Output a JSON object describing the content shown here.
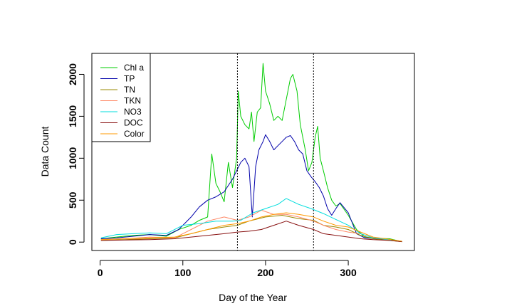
{
  "chart_data": {
    "type": "line",
    "xlabel": "Day of the Year",
    "ylabel": "Data Count",
    "xlim": [
      -10,
      380
    ],
    "ylim": [
      -100,
      2250
    ],
    "x_ticks": [
      0,
      100,
      200,
      300
    ],
    "y_ticks": [
      0,
      500,
      1000,
      1500,
      2000
    ],
    "vlines": [
      166,
      258
    ],
    "legend_position": "top-left",
    "series": [
      {
        "name": "Chl a",
        "color": "#00cc00",
        "points": [
          [
            1,
            40
          ],
          [
            20,
            60
          ],
          [
            40,
            80
          ],
          [
            60,
            90
          ],
          [
            80,
            70
          ],
          [
            95,
            150
          ],
          [
            110,
            200
          ],
          [
            120,
            260
          ],
          [
            130,
            300
          ],
          [
            135,
            1050
          ],
          [
            140,
            700
          ],
          [
            145,
            600
          ],
          [
            150,
            480
          ],
          [
            155,
            950
          ],
          [
            160,
            650
          ],
          [
            165,
            1000
          ],
          [
            167,
            1800
          ],
          [
            170,
            1500
          ],
          [
            175,
            1400
          ],
          [
            180,
            1350
          ],
          [
            183,
            1550
          ],
          [
            186,
            1200
          ],
          [
            190,
            1550
          ],
          [
            194,
            1600
          ],
          [
            197,
            2130
          ],
          [
            200,
            1800
          ],
          [
            205,
            1650
          ],
          [
            210,
            1450
          ],
          [
            215,
            1500
          ],
          [
            220,
            1450
          ],
          [
            225,
            1700
          ],
          [
            230,
            1950
          ],
          [
            233,
            2000
          ],
          [
            238,
            1800
          ],
          [
            242,
            1400
          ],
          [
            248,
            1100
          ],
          [
            252,
            850
          ],
          [
            256,
            950
          ],
          [
            260,
            1250
          ],
          [
            263,
            1380
          ],
          [
            266,
            1000
          ],
          [
            270,
            850
          ],
          [
            275,
            650
          ],
          [
            280,
            500
          ],
          [
            285,
            430
          ],
          [
            290,
            460
          ],
          [
            300,
            320
          ],
          [
            310,
            150
          ],
          [
            320,
            60
          ],
          [
            335,
            45
          ],
          [
            350,
            40
          ],
          [
            365,
            5
          ]
        ]
      },
      {
        "name": "TP",
        "color": "#0000aa",
        "points": [
          [
            1,
            40
          ],
          [
            20,
            50
          ],
          [
            40,
            70
          ],
          [
            60,
            90
          ],
          [
            80,
            80
          ],
          [
            95,
            150
          ],
          [
            110,
            300
          ],
          [
            120,
            420
          ],
          [
            130,
            500
          ],
          [
            140,
            540
          ],
          [
            150,
            600
          ],
          [
            160,
            750
          ],
          [
            165,
            850
          ],
          [
            170,
            950
          ],
          [
            175,
            1000
          ],
          [
            180,
            900
          ],
          [
            184,
            300
          ],
          [
            188,
            900
          ],
          [
            192,
            1100
          ],
          [
            197,
            1200
          ],
          [
            200,
            1280
          ],
          [
            205,
            1200
          ],
          [
            210,
            1100
          ],
          [
            215,
            1150
          ],
          [
            220,
            1200
          ],
          [
            225,
            1250
          ],
          [
            230,
            1270
          ],
          [
            235,
            1200
          ],
          [
            240,
            1100
          ],
          [
            245,
            1050
          ],
          [
            250,
            850
          ],
          [
            255,
            780
          ],
          [
            260,
            720
          ],
          [
            265,
            650
          ],
          [
            270,
            550
          ],
          [
            275,
            400
          ],
          [
            280,
            320
          ],
          [
            285,
            400
          ],
          [
            290,
            470
          ],
          [
            300,
            350
          ],
          [
            310,
            100
          ],
          [
            320,
            50
          ],
          [
            335,
            40
          ],
          [
            350,
            30
          ],
          [
            365,
            5
          ]
        ]
      },
      {
        "name": "TN",
        "color": "#998800",
        "points": [
          [
            1,
            20
          ],
          [
            30,
            30
          ],
          [
            60,
            40
          ],
          [
            90,
            50
          ],
          [
            110,
            100
          ],
          [
            130,
            150
          ],
          [
            150,
            180
          ],
          [
            166,
            200
          ],
          [
            180,
            250
          ],
          [
            200,
            300
          ],
          [
            220,
            320
          ],
          [
            240,
            280
          ],
          [
            258,
            260
          ],
          [
            270,
            200
          ],
          [
            285,
            180
          ],
          [
            300,
            150
          ],
          [
            315,
            80
          ],
          [
            330,
            40
          ],
          [
            350,
            20
          ],
          [
            365,
            5
          ]
        ]
      },
      {
        "name": "TKN",
        "color": "#ff8866",
        "points": [
          [
            1,
            30
          ],
          [
            30,
            40
          ],
          [
            60,
            60
          ],
          [
            90,
            50
          ],
          [
            110,
            150
          ],
          [
            130,
            250
          ],
          [
            150,
            300
          ],
          [
            166,
            260
          ],
          [
            180,
            300
          ],
          [
            195,
            380
          ],
          [
            210,
            330
          ],
          [
            225,
            330
          ],
          [
            240,
            300
          ],
          [
            258,
            250
          ],
          [
            270,
            200
          ],
          [
            285,
            150
          ],
          [
            300,
            120
          ],
          [
            315,
            100
          ],
          [
            330,
            50
          ],
          [
            350,
            30
          ],
          [
            365,
            5
          ]
        ]
      },
      {
        "name": "NO3",
        "color": "#00dddd",
        "points": [
          [
            1,
            50
          ],
          [
            20,
            90
          ],
          [
            40,
            100
          ],
          [
            60,
            110
          ],
          [
            80,
            100
          ],
          [
            100,
            200
          ],
          [
            120,
            220
          ],
          [
            140,
            250
          ],
          [
            160,
            250
          ],
          [
            170,
            260
          ],
          [
            185,
            350
          ],
          [
            200,
            400
          ],
          [
            215,
            450
          ],
          [
            225,
            520
          ],
          [
            240,
            450
          ],
          [
            255,
            400
          ],
          [
            270,
            340
          ],
          [
            285,
            270
          ],
          [
            300,
            200
          ],
          [
            315,
            100
          ],
          [
            330,
            50
          ],
          [
            350,
            30
          ],
          [
            365,
            10
          ]
        ]
      },
      {
        "name": "DOC",
        "color": "#881111",
        "points": [
          [
            1,
            20
          ],
          [
            30,
            25
          ],
          [
            60,
            30
          ],
          [
            90,
            40
          ],
          [
            110,
            60
          ],
          [
            130,
            80
          ],
          [
            150,
            100
          ],
          [
            166,
            120
          ],
          [
            180,
            130
          ],
          [
            195,
            150
          ],
          [
            210,
            200
          ],
          [
            225,
            250
          ],
          [
            240,
            200
          ],
          [
            258,
            150
          ],
          [
            270,
            100
          ],
          [
            285,
            80
          ],
          [
            300,
            60
          ],
          [
            315,
            40
          ],
          [
            330,
            30
          ],
          [
            350,
            20
          ],
          [
            365,
            5
          ]
        ]
      },
      {
        "name": "Color",
        "color": "#ff9900",
        "points": [
          [
            1,
            30
          ],
          [
            30,
            40
          ],
          [
            60,
            50
          ],
          [
            90,
            60
          ],
          [
            110,
            100
          ],
          [
            130,
            150
          ],
          [
            150,
            200
          ],
          [
            166,
            220
          ],
          [
            180,
            250
          ],
          [
            195,
            300
          ],
          [
            210,
            330
          ],
          [
            225,
            350
          ],
          [
            240,
            330
          ],
          [
            258,
            300
          ],
          [
            270,
            250
          ],
          [
            285,
            200
          ],
          [
            300,
            180
          ],
          [
            315,
            120
          ],
          [
            330,
            60
          ],
          [
            345,
            40
          ],
          [
            365,
            10
          ]
        ]
      }
    ]
  }
}
